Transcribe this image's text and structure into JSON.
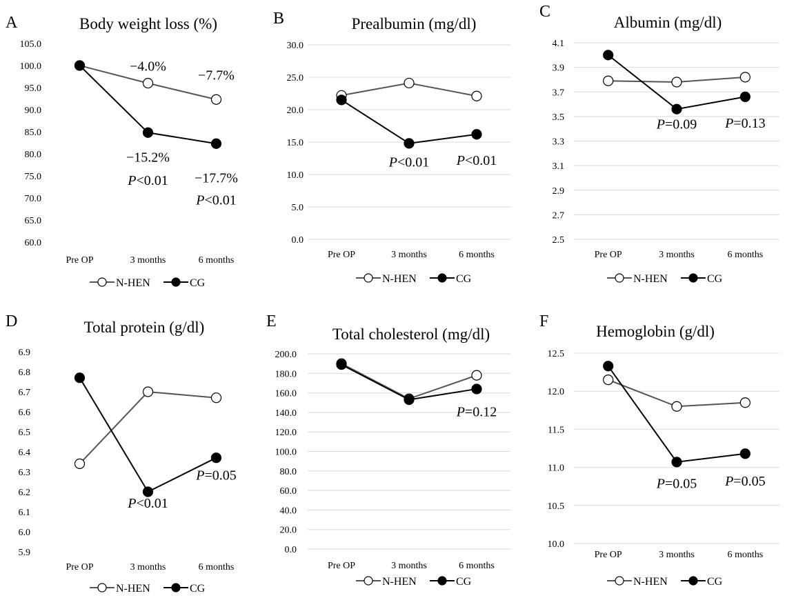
{
  "series_styles": {
    "N-HEN": {
      "marker": "open-circle",
      "color": "#555555",
      "fill": "#ffffff"
    },
    "CG": {
      "marker": "filled-circle",
      "color": "#000000",
      "fill": "#000000"
    }
  },
  "chart_data": [
    {
      "panel": "A",
      "type": "line",
      "title": "Body weight  loss (%)",
      "categories": [
        "Pre OP",
        "3 months",
        "6 months"
      ],
      "ylim": [
        60,
        105
      ],
      "yticks": [
        "60.0",
        "65.0",
        "70.0",
        "75.0",
        "80.0",
        "85.0",
        "90.0",
        "95.0",
        "100.0",
        "105.0"
      ],
      "grid": false,
      "legend": "bottom",
      "series": [
        {
          "name": "N-HEN",
          "values": [
            100.0,
            96.0,
            92.3
          ]
        },
        {
          "name": "CG",
          "values": [
            100.0,
            84.8,
            82.3
          ]
        }
      ],
      "annotations": [
        {
          "text": "−4.0%",
          "x": "3 months",
          "y": 98.8
        },
        {
          "text": "−7.7%",
          "x": "6 months",
          "y": 96.8
        },
        {
          "text": "−15.2%",
          "x": "3 months",
          "y": 78.2
        },
        {
          "text": "P<0.01",
          "x": "3 months",
          "y": 73.0
        },
        {
          "text": "−17.7%",
          "x": "6 months",
          "y": 73.5
        },
        {
          "text": "P<0.01",
          "x": "6 months",
          "y": 68.5
        }
      ]
    },
    {
      "panel": "B",
      "type": "line",
      "title": "Prealbumin  (mg/dl)",
      "categories": [
        "Pre OP",
        "3 months",
        "6 months"
      ],
      "ylim": [
        0,
        30
      ],
      "yticks": [
        "0.0",
        "5.0",
        "10.0",
        "15.0",
        "20.0",
        "25.0",
        "30.0"
      ],
      "grid": true,
      "legend": "bottom",
      "series": [
        {
          "name": "N-HEN",
          "values": [
            22.2,
            24.1,
            22.1
          ]
        },
        {
          "name": "CG",
          "values": [
            21.5,
            14.8,
            16.2
          ]
        }
      ],
      "annotations": [
        {
          "text": "P<0.01",
          "x": "3 months",
          "y": 11.2
        },
        {
          "text": "P<0.01",
          "x": "6 months",
          "y": 11.5
        }
      ]
    },
    {
      "panel": "C",
      "type": "line",
      "title": "Albumin  (mg/dl)",
      "categories": [
        "Pre OP",
        "3 months",
        "6 months"
      ],
      "ylim": [
        2.5,
        4.1
      ],
      "yticks": [
        "2.5",
        "2.7",
        "2.9",
        "3.1",
        "3.3",
        "3.5",
        "3.7",
        "3.9",
        "4.1"
      ],
      "grid": true,
      "legend": "bottom",
      "series": [
        {
          "name": "N-HEN",
          "values": [
            3.79,
            3.78,
            3.82
          ]
        },
        {
          "name": "CG",
          "values": [
            4.0,
            3.56,
            3.66
          ]
        }
      ],
      "annotations": [
        {
          "text": "P=0.09",
          "x": "3 months",
          "y": 3.4
        },
        {
          "text": "P=0.13",
          "x": "6 months",
          "y": 3.41
        }
      ]
    },
    {
      "panel": "D",
      "type": "line",
      "title": "Total protein (g/dl)",
      "categories": [
        "Pre OP",
        "3 months",
        "6 months"
      ],
      "ylim": [
        5.9,
        6.9
      ],
      "yticks": [
        "5.9",
        "6.0",
        "6.1",
        "6.2",
        "6.3",
        "6.4",
        "6.5",
        "6.6",
        "6.7",
        "6.8",
        "6.9"
      ],
      "grid": false,
      "legend": "bottom",
      "series": [
        {
          "name": "N-HEN",
          "values": [
            6.34,
            6.7,
            6.67
          ]
        },
        {
          "name": "CG",
          "values": [
            6.77,
            6.2,
            6.37
          ]
        }
      ],
      "annotations": [
        {
          "text": "P<0.01",
          "x": "3 months",
          "y": 6.12
        },
        {
          "text": "P=0.05",
          "x": "6 months",
          "y": 6.26
        }
      ]
    },
    {
      "panel": "E",
      "type": "line",
      "title": "Total cholesterol (mg/dl)",
      "categories": [
        "Pre OP",
        "3 months",
        "6 months"
      ],
      "ylim": [
        0,
        200
      ],
      "yticks": [
        "0.0",
        "20.0",
        "40.0",
        "60.0",
        "80.0",
        "100.0",
        "120.0",
        "140.0",
        "160.0",
        "180.0",
        "200.0"
      ],
      "grid": true,
      "legend": "bottom",
      "series": [
        {
          "name": "N-HEN",
          "values": [
            190.0,
            154.0,
            178.0
          ]
        },
        {
          "name": "CG",
          "values": [
            189.0,
            153.0,
            164.0
          ]
        }
      ],
      "annotations": [
        {
          "text": "P=0.12",
          "x": "6 months",
          "y": 136.0
        }
      ]
    },
    {
      "panel": "F",
      "type": "line",
      "title": "Hemoglobin  (g/dl)",
      "categories": [
        "Pre OP",
        "3 months",
        "6 months"
      ],
      "ylim": [
        10.0,
        12.5
      ],
      "yticks": [
        "10.0",
        "10.5",
        "11.0",
        "11.5",
        "12.0",
        "12.5"
      ],
      "grid": true,
      "legend": "bottom",
      "series": [
        {
          "name": "N-HEN",
          "values": [
            12.15,
            11.8,
            11.85
          ]
        },
        {
          "name": "CG",
          "values": [
            12.33,
            11.07,
            11.18
          ]
        }
      ],
      "annotations": [
        {
          "text": "P=0.05",
          "x": "3 months",
          "y": 10.73
        },
        {
          "text": "P=0.05",
          "x": "6 months",
          "y": 10.76
        }
      ]
    }
  ]
}
